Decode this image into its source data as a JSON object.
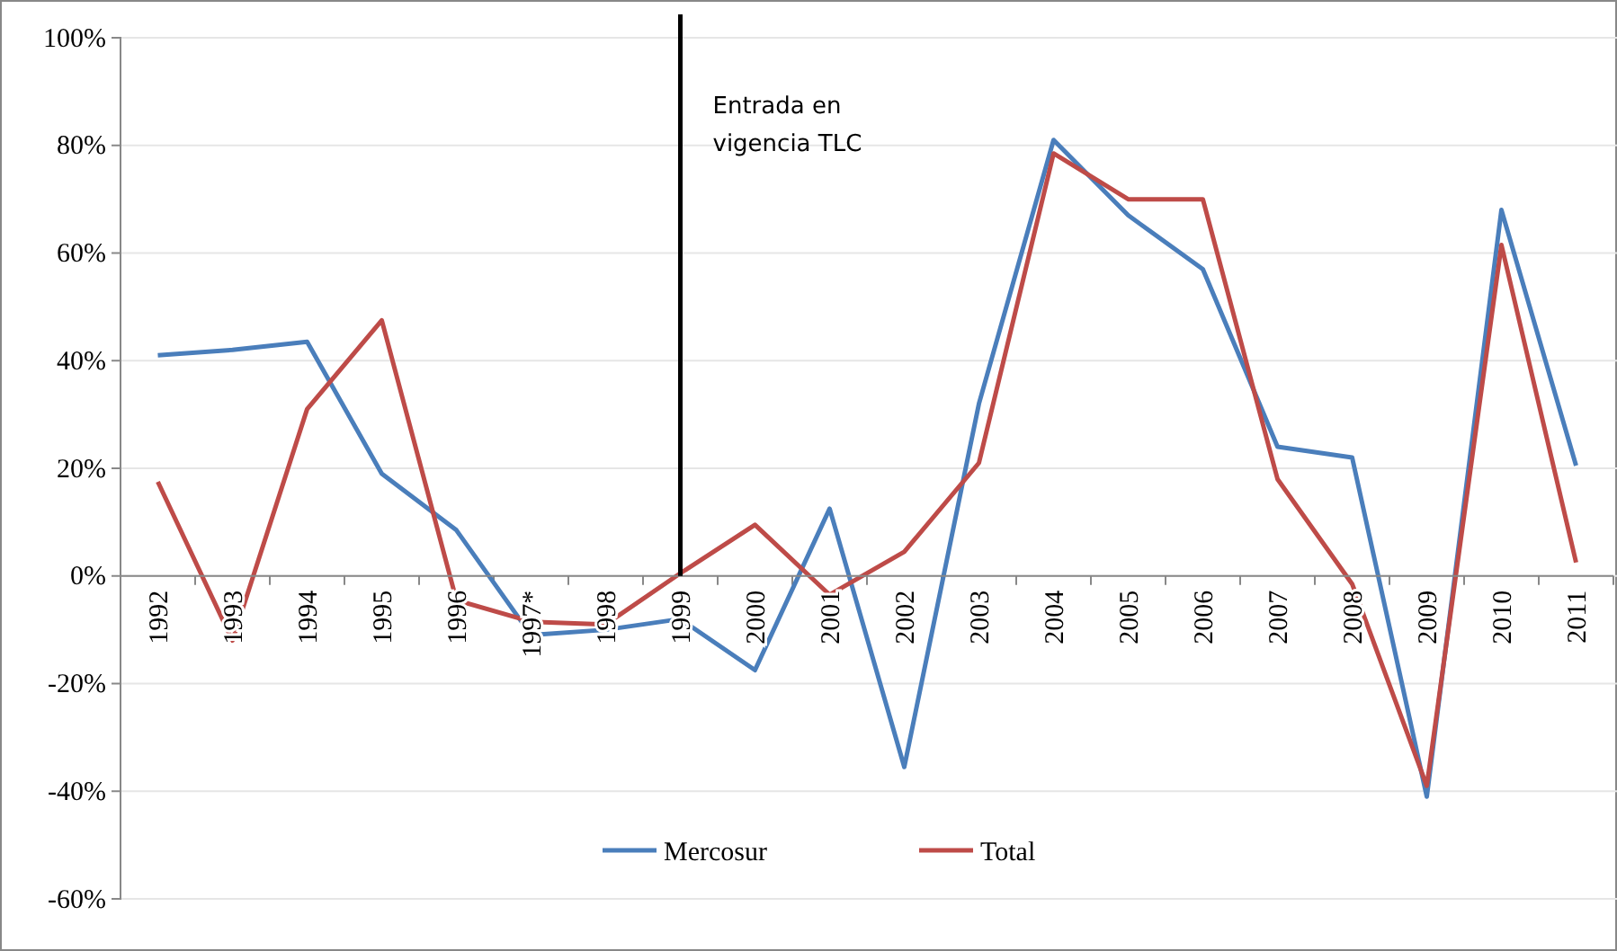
{
  "chart_data": {
    "type": "line",
    "categories": [
      "1992",
      "1993",
      "1994",
      "1995",
      "1996",
      "1997*",
      "1998",
      "1999",
      "2000",
      "2001",
      "2002",
      "2003",
      "2004",
      "2005",
      "2006",
      "2007",
      "2008",
      "2009",
      "2010",
      "2011"
    ],
    "series": [
      {
        "name": "Mercosur",
        "color": "#4a7ebb",
        "values": [
          41,
          42,
          43.5,
          19,
          8.5,
          -11,
          -10,
          -8,
          -17.5,
          12.5,
          -35.5,
          32,
          81,
          67,
          57,
          24,
          22,
          -41,
          68,
          20.5
        ]
      },
      {
        "name": "Total",
        "color": "#be4b48",
        "values": [
          17.5,
          -12,
          31,
          47.5,
          -4.5,
          -8.5,
          -9,
          0.5,
          9.5,
          -3.5,
          4.5,
          21,
          78.5,
          70,
          70,
          18,
          -1.5,
          -39,
          61.5,
          2.5
        ]
      }
    ],
    "ylim": [
      -60,
      100
    ],
    "yticks": [
      {
        "value": -60,
        "label": "-60%"
      },
      {
        "value": -40,
        "label": "-40%"
      },
      {
        "value": -20,
        "label": "-20%"
      },
      {
        "value": 0,
        "label": "0%"
      },
      {
        "value": 20,
        "label": "20%"
      },
      {
        "value": 40,
        "label": "40%"
      },
      {
        "value": 60,
        "label": "60%"
      },
      {
        "value": 80,
        "label": "80%"
      },
      {
        "value": 100,
        "label": "100%"
      }
    ],
    "grid": "y",
    "legend": "bottom",
    "marker": "none",
    "line_style": "solid",
    "ref_lines": [
      {
        "axis": "x",
        "value": "1999",
        "label": "Entrada  en\nvigencia TLC",
        "color": "#000000"
      }
    ]
  }
}
